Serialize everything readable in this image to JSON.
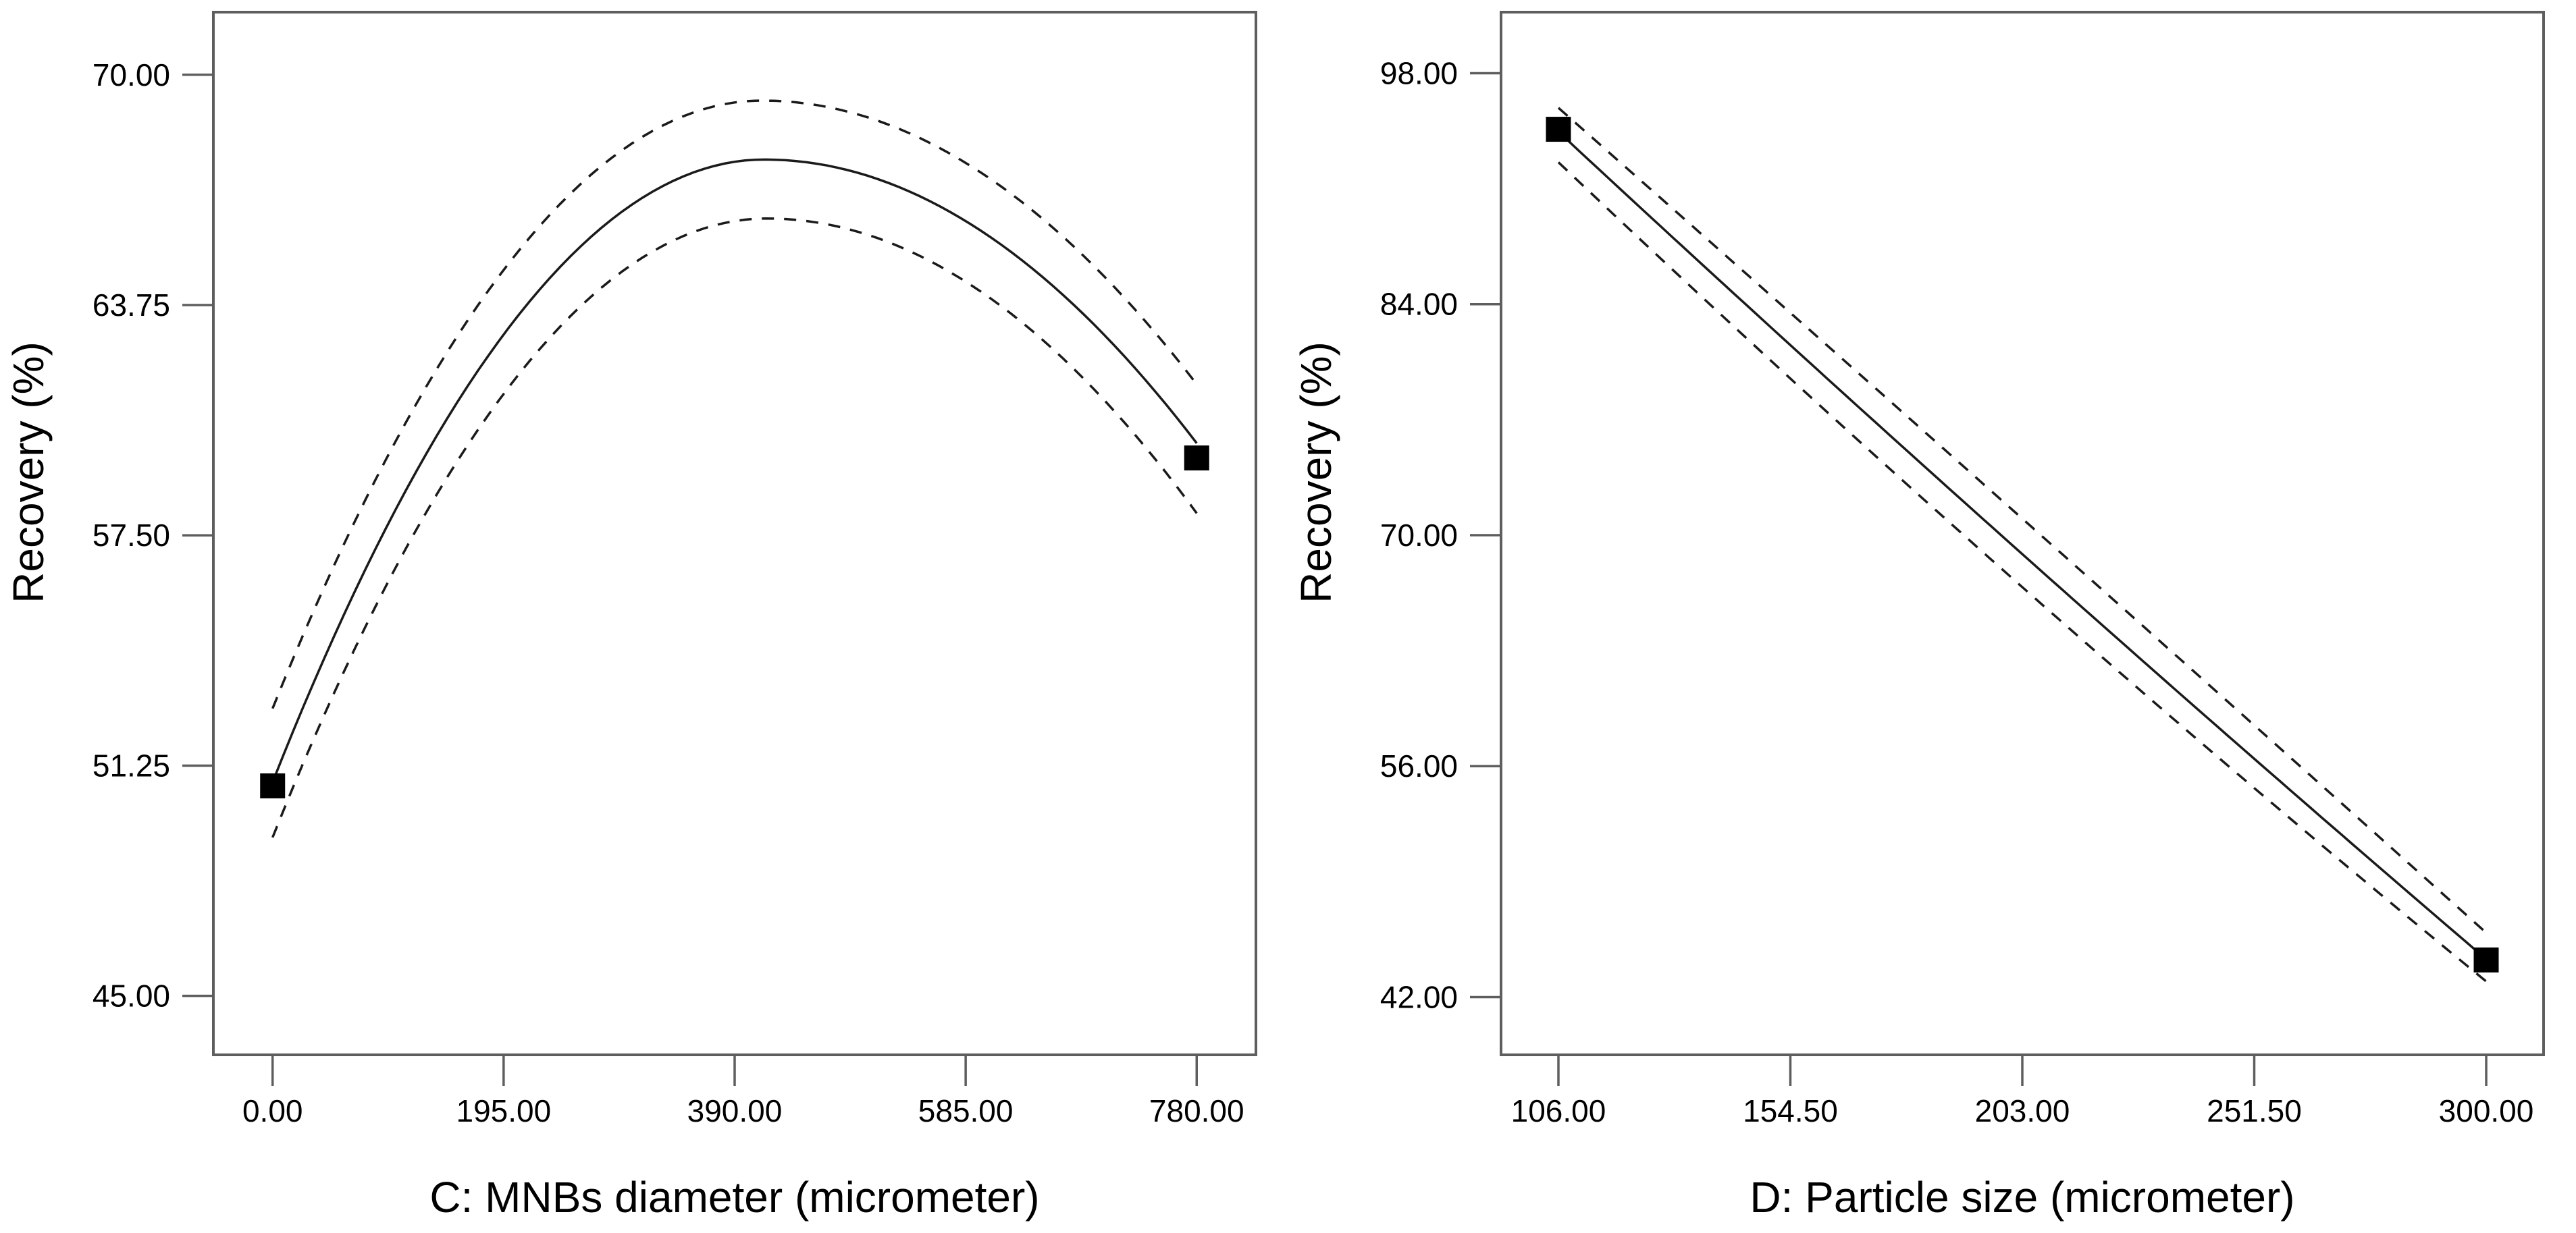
{
  "style": {
    "background": "#ffffff",
    "axis_color": "#5e5e5e",
    "curve_color": "#1a1a1a",
    "band_color": "#1a1a1a",
    "point_color": "#000000",
    "text_color": "#000000"
  },
  "chart_data": [
    {
      "type": "line",
      "title": "",
      "xlabel": "C: MNBs diameter (micrometer)",
      "ylabel": "Recovery (%)",
      "x_ticks": [
        0,
        195,
        390,
        585,
        780
      ],
      "x_tick_labels": [
        "0.00",
        "195.00",
        "390.00",
        "585.00",
        "780.00"
      ],
      "y_ticks": [
        45,
        51.25,
        57.5,
        63.75,
        70
      ],
      "y_tick_labels": [
        "45.00",
        "51.25",
        "57.50",
        "63.75",
        "70.00"
      ],
      "xlim": [
        -50,
        830
      ],
      "ylim": [
        43.4,
        71.7
      ],
      "grid": false,
      "legend": false,
      "series": [
        {
          "name": "predicted-recovery",
          "style": "solid",
          "interpolation": "peak",
          "points": [
            {
              "x": 0,
              "y": 50.8
            },
            {
              "x": 415,
              "y": 67.7
            },
            {
              "x": 780,
              "y": 60.0
            }
          ]
        },
        {
          "name": "ci-upper",
          "style": "dashed",
          "interpolation": "peak",
          "points": [
            {
              "x": 0,
              "y": 52.8
            },
            {
              "x": 413,
              "y": 69.3
            },
            {
              "x": 780,
              "y": 61.6
            }
          ]
        },
        {
          "name": "ci-lower",
          "style": "dashed",
          "interpolation": "peak",
          "points": [
            {
              "x": 0,
              "y": 49.3
            },
            {
              "x": 417,
              "y": 66.1
            },
            {
              "x": 780,
              "y": 58.1
            }
          ]
        }
      ],
      "design_points": [
        {
          "x": 0,
          "y": 50.7
        },
        {
          "x": 780,
          "y": 59.6
        }
      ]
    },
    {
      "type": "line",
      "title": "",
      "xlabel": "D: Particle size (micrometer)",
      "ylabel": "Recovery (%)",
      "x_ticks": [
        106,
        154.5,
        203,
        251.5,
        300
      ],
      "x_tick_labels": [
        "106.00",
        "154.50",
        "203.00",
        "251.50",
        "300.00"
      ],
      "y_ticks": [
        42,
        56,
        70,
        84,
        98
      ],
      "y_tick_labels": [
        "42.00",
        "56.00",
        "70.00",
        "84.00",
        "98.00"
      ],
      "xlim": [
        94,
        312
      ],
      "ylim": [
        38.5,
        101.7
      ],
      "grid": false,
      "legend": false,
      "series": [
        {
          "name": "predicted-recovery",
          "style": "solid",
          "interpolation": "quadratic",
          "points": [
            {
              "x": 106,
              "y": 94.45
            },
            {
              "x": 203,
              "y": 68.85
            },
            {
              "x": 300,
              "y": 44.3
            }
          ]
        },
        {
          "name": "ci-upper",
          "style": "dashed",
          "interpolation": "quadratic",
          "points": [
            {
              "x": 106,
              "y": 95.9
            },
            {
              "x": 203,
              "y": 71.0
            },
            {
              "x": 300,
              "y": 45.9
            }
          ]
        },
        {
          "name": "ci-lower",
          "style": "dashed",
          "interpolation": "quadratic",
          "points": [
            {
              "x": 106,
              "y": 92.6
            },
            {
              "x": 203,
              "y": 66.85
            },
            {
              "x": 300,
              "y": 42.95
            }
          ]
        }
      ],
      "design_points": [
        {
          "x": 106,
          "y": 94.6
        },
        {
          "x": 300,
          "y": 44.25
        }
      ]
    }
  ]
}
